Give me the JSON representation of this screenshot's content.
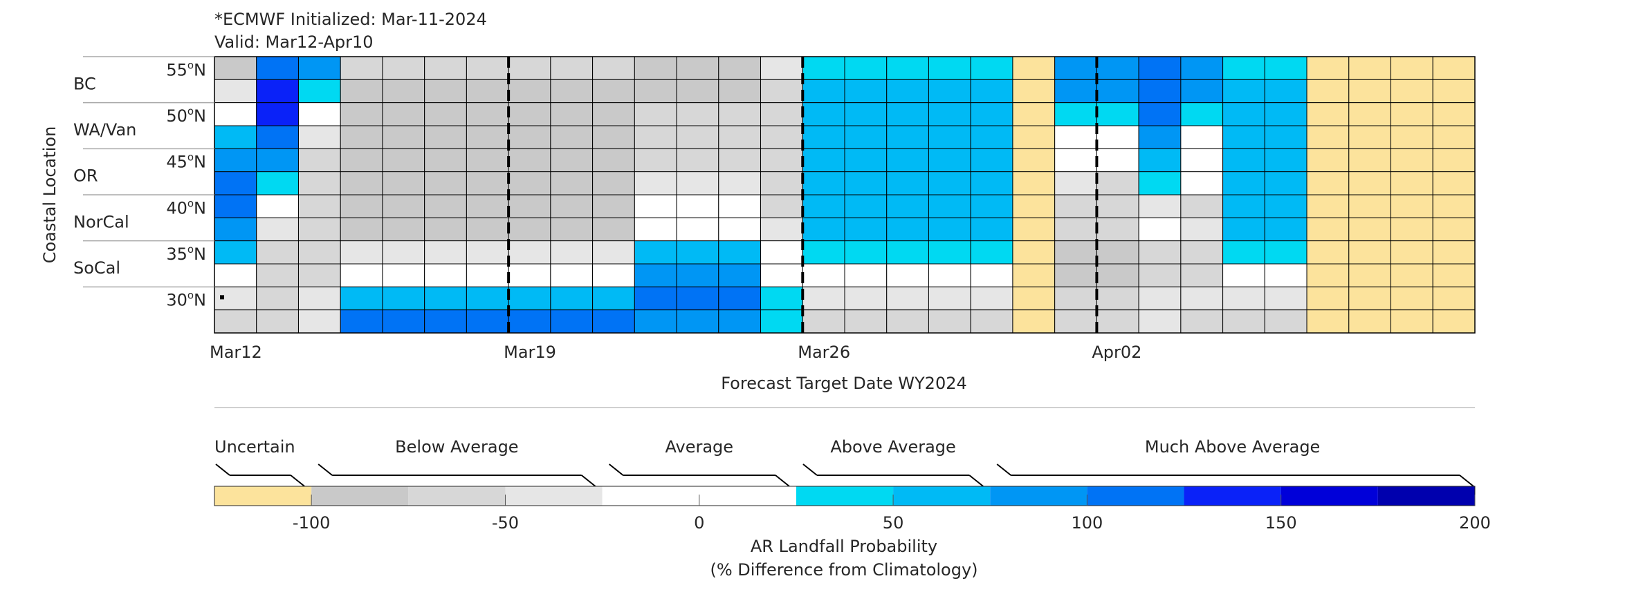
{
  "header": {
    "line1": "*ECMWF Initialized: Mar-11-2024",
    "line2": "Valid: Mar12-Apr10"
  },
  "chart_data": {
    "type": "heatmap",
    "title": "*ECMWF Initialized: Mar-11-2024",
    "subtitle": "Valid: Mar12-Apr10",
    "xlabel": "Forecast Target Date WY2024",
    "ylabel": "Coastal Location",
    "x_tick_labels": [
      {
        "label": "Mar12",
        "day_index": 0
      },
      {
        "label": "Mar19",
        "day_index": 7
      },
      {
        "label": "Mar26",
        "day_index": 14
      },
      {
        "label": "Apr02",
        "day_index": 21
      }
    ],
    "week_boundaries_after_day_index": [
      6,
      13,
      20
    ],
    "days": [
      "Mar12",
      "Mar13",
      "Mar14",
      "Mar15",
      "Mar16",
      "Mar17",
      "Mar18",
      "Mar19",
      "Mar20",
      "Mar21",
      "Mar22",
      "Mar23",
      "Mar24",
      "Mar25",
      "Mar26",
      "Mar27",
      "Mar28",
      "Mar29",
      "Mar30",
      "Mar31",
      "Apr01",
      "Apr02",
      "Apr03",
      "Apr04",
      "Apr05",
      "Apr06",
      "Apr07",
      "Apr08",
      "Apr09",
      "Apr10"
    ],
    "lat_tick_labels": [
      {
        "deg": "55",
        "unit": "N"
      },
      {
        "deg": "50",
        "unit": "N"
      },
      {
        "deg": "45",
        "unit": "N"
      },
      {
        "deg": "40",
        "unit": "N"
      },
      {
        "deg": "35",
        "unit": "N"
      },
      {
        "deg": "30",
        "unit": "N"
      }
    ],
    "regions": [
      "BC",
      "WA/Van",
      "OR",
      "NorCal",
      "SoCal"
    ],
    "value_note": "Values are % difference from climatology, binned to the colorbar category; -999 = Uncertain",
    "rows": [
      [
        -90,
        115,
        90,
        -60,
        -60,
        -60,
        -60,
        -60,
        -60,
        -60,
        -90,
        -90,
        -90,
        -35,
        40,
        40,
        40,
        40,
        40,
        -999,
        90,
        90,
        110,
        90,
        40,
        40,
        -999,
        -999,
        -999,
        -999
      ],
      [
        -40,
        140,
        40,
        -85,
        -85,
        -85,
        -85,
        -85,
        -85,
        -85,
        -85,
        -85,
        -85,
        -60,
        60,
        60,
        60,
        60,
        60,
        -999,
        90,
        90,
        110,
        90,
        60,
        60,
        -999,
        -999,
        -999,
        -999
      ],
      [
        0,
        140,
        0,
        -85,
        -85,
        -85,
        -85,
        -85,
        -85,
        -85,
        -60,
        -60,
        -60,
        -60,
        60,
        60,
        60,
        60,
        60,
        -999,
        40,
        40,
        110,
        40,
        60,
        60,
        -999,
        -999,
        -999,
        -999
      ],
      [
        60,
        110,
        -35,
        -85,
        -85,
        -85,
        -85,
        -85,
        -85,
        -85,
        -60,
        -60,
        -60,
        -60,
        60,
        60,
        60,
        60,
        60,
        -999,
        0,
        0,
        90,
        0,
        60,
        60,
        -999,
        -999,
        -999,
        -999
      ],
      [
        90,
        90,
        -60,
        -85,
        -85,
        -85,
        -85,
        -85,
        -85,
        -85,
        -60,
        -60,
        -60,
        -60,
        60,
        60,
        60,
        60,
        60,
        -999,
        0,
        0,
        60,
        0,
        60,
        60,
        -999,
        -999,
        -999,
        -999
      ],
      [
        110,
        40,
        -60,
        -85,
        -85,
        -85,
        -85,
        -85,
        -85,
        -85,
        -35,
        -35,
        -35,
        -60,
        60,
        60,
        60,
        60,
        60,
        -999,
        -35,
        -60,
        40,
        0,
        60,
        60,
        -999,
        -999,
        -999,
        -999
      ],
      [
        110,
        0,
        -60,
        -85,
        -85,
        -85,
        -85,
        -85,
        -85,
        -85,
        0,
        0,
        0,
        -60,
        60,
        60,
        60,
        60,
        60,
        -999,
        -60,
        -60,
        -35,
        -60,
        60,
        60,
        -999,
        -999,
        -999,
        -999
      ],
      [
        90,
        -35,
        -60,
        -85,
        -85,
        -85,
        -85,
        -85,
        -85,
        -85,
        0,
        0,
        0,
        -35,
        60,
        60,
        60,
        60,
        60,
        -999,
        -60,
        -60,
        0,
        -35,
        60,
        60,
        -999,
        -999,
        -999,
        -999
      ],
      [
        60,
        -60,
        -60,
        -35,
        -35,
        -35,
        -35,
        -35,
        -35,
        -35,
        60,
        60,
        60,
        0,
        40,
        40,
        40,
        40,
        40,
        -999,
        -85,
        -85,
        -60,
        -60,
        40,
        40,
        -999,
        -999,
        -999,
        -999
      ],
      [
        0,
        -60,
        -60,
        0,
        0,
        0,
        0,
        0,
        0,
        0,
        90,
        90,
        90,
        0,
        0,
        0,
        0,
        0,
        0,
        -999,
        -85,
        -85,
        -60,
        -60,
        0,
        0,
        -999,
        -999,
        -999,
        -999
      ],
      [
        -35,
        -60,
        -35,
        60,
        60,
        60,
        60,
        60,
        60,
        60,
        110,
        110,
        110,
        40,
        -35,
        -35,
        -35,
        -35,
        -35,
        -999,
        -60,
        -60,
        -35,
        -35,
        -35,
        -35,
        -999,
        -999,
        -999,
        -999
      ],
      [
        -60,
        -60,
        -35,
        110,
        110,
        110,
        110,
        110,
        110,
        110,
        90,
        90,
        90,
        40,
        -60,
        -60,
        -60,
        -60,
        -60,
        -999,
        -60,
        -60,
        -35,
        -60,
        -60,
        -60,
        -999,
        -999,
        -999,
        -999
      ]
    ],
    "colorbar": {
      "label_line1": "AR Landfall Probability",
      "label_line2": "(% Difference from Climatology)",
      "range": [
        -125,
        200
      ],
      "bin_edges": [
        -125,
        -100,
        -75,
        -50,
        -25,
        0,
        25,
        50,
        75,
        100,
        125,
        150,
        175,
        200
      ],
      "colors": [
        "#FCE39C",
        "#C9C9C9",
        "#D7D7D7",
        "#E6E6E6",
        "#FFFFFF",
        "#FFFFFF",
        "#00D9F2",
        "#00BAF5",
        "#0096F4",
        "#0073F5",
        "#0A22F8",
        "#0000D9",
        "#0000AE"
      ],
      "tick_labels": [
        "-100",
        "-50",
        "0",
        "50",
        "100",
        "150",
        "200"
      ],
      "tick_values": [
        -100,
        -50,
        0,
        50,
        100,
        150,
        200
      ],
      "categories": [
        {
          "label": "Uncertain",
          "range": [
            -125,
            -100
          ]
        },
        {
          "label": "Below Average",
          "range": [
            -100,
            -25
          ]
        },
        {
          "label": "Average",
          "range": [
            -25,
            25
          ]
        },
        {
          "label": "Above Average",
          "range": [
            25,
            75
          ]
        },
        {
          "label": "Much Above Average",
          "range": [
            75,
            200
          ]
        }
      ]
    }
  }
}
